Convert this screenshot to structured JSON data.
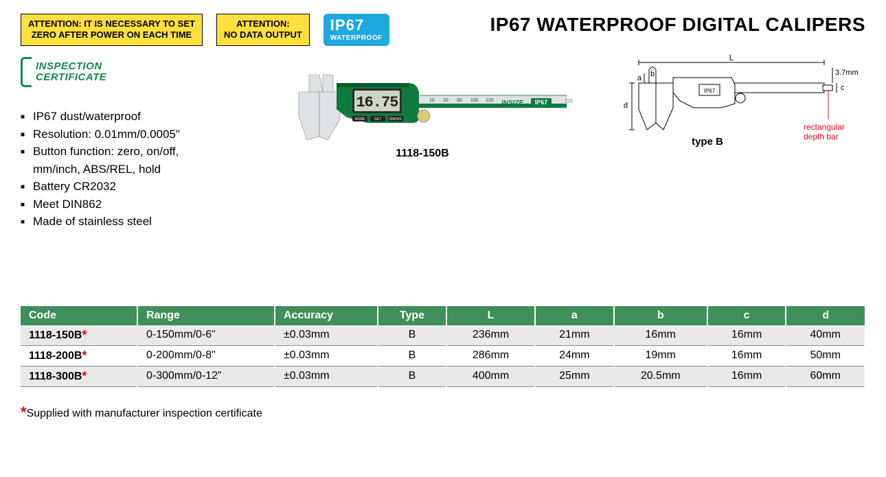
{
  "page_title": "IP67 WATERPROOF DIGITAL CALIPERS",
  "badges": {
    "attention_zero": "ATTENTION: IT IS NECESSARY TO SET\nZERO AFTER POWER ON EACH TIME",
    "attention_nodata": "ATTENTION:\nNO DATA OUTPUT",
    "ip67_big": "IP67",
    "ip67_small": "WATERPROOF"
  },
  "inspection_cert": {
    "line1": "INSPECTION",
    "line2": "CERTIFICATE"
  },
  "features": [
    "IP67 dust/waterproof",
    "Resolution: 0.01mm/0.0005\"",
    "Button function: zero, on/off, mm/inch, ABS/REL, hold",
    "Battery CR2032",
    "Meet DIN862",
    "Made of stainless steel"
  ],
  "product_image": {
    "model_label": "1118-150B",
    "lcd_value": "16.75",
    "brand": "INSIZE",
    "ip_label": "IP67",
    "buttons": [
      "MODE",
      "SET",
      "ON/OFF"
    ]
  },
  "diagram": {
    "type_label": "type B",
    "L": "L",
    "a": "a",
    "b": "b",
    "c": "c",
    "d": "d",
    "thickness": "3.7mm",
    "note": "rectangular\ndepth bar",
    "ip_label": "IP67"
  },
  "table": {
    "columns": [
      "Code",
      "Range",
      "Accuracy",
      "Type",
      "L",
      "a",
      "b",
      "c",
      "d"
    ],
    "col_align": [
      "left",
      "left",
      "left",
      "center",
      "center",
      "center",
      "center",
      "center",
      "center"
    ],
    "rows": [
      {
        "code": "1118-150B",
        "star": true,
        "range": "0-150mm/0-6\"",
        "accuracy": "±0.03mm",
        "type": "B",
        "L": "236mm",
        "a": "21mm",
        "b": "16mm",
        "c": "16mm",
        "d": "40mm"
      },
      {
        "code": "1118-200B",
        "star": true,
        "range": "0-200mm/0-8\"",
        "accuracy": "±0.03mm",
        "type": "B",
        "L": "286mm",
        "a": "24mm",
        "b": "19mm",
        "c": "16mm",
        "d": "50mm"
      },
      {
        "code": "1118-300B",
        "star": true,
        "range": "0-300mm/0-12\"",
        "accuracy": "±0.03mm",
        "type": "B",
        "L": "400mm",
        "a": "25mm",
        "b": "20.5mm",
        "c": "16mm",
        "d": "60mm"
      }
    ],
    "header_bg": "#3f8f5b",
    "row_odd_bg": "#e9e9e9",
    "row_even_bg": "#ffffff"
  },
  "footnote": {
    "star": "*",
    "text": "Supplied with manufacturer inspection certificate"
  },
  "colors": {
    "yellow": "#ffdf3f",
    "blue": "#1fa8e0",
    "green": "#0f8a4d",
    "red": "#e30613"
  }
}
